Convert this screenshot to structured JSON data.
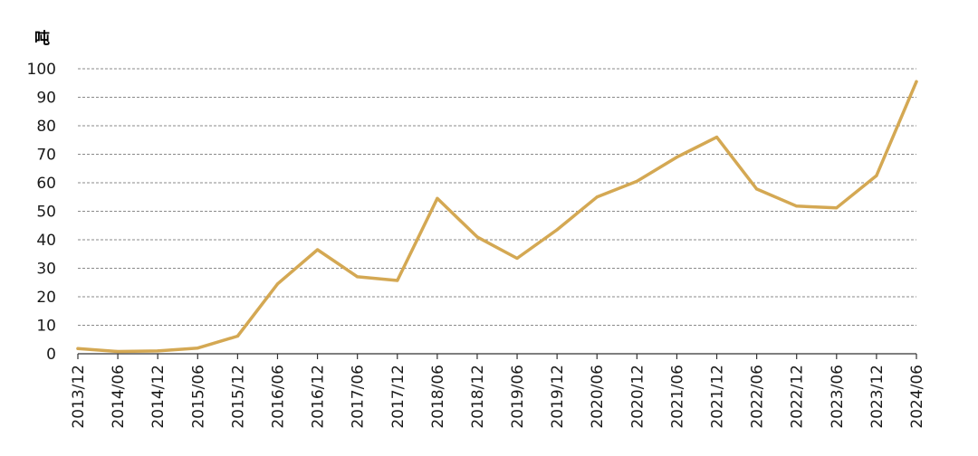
{
  "chart_data": {
    "type": "line",
    "unit_label": "吨",
    "x": [
      "2013/12",
      "2014/06",
      "2014/12",
      "2015/06",
      "2015/12",
      "2016/06",
      "2016/12",
      "2017/06",
      "2017/12",
      "2018/06",
      "2018/12",
      "2019/06",
      "2019/12",
      "2020/06",
      "2020/12",
      "2021/06",
      "2021/12",
      "2022/06",
      "2022/12",
      "2023/06",
      "2023/12",
      "2024/06"
    ],
    "series": [
      {
        "values": [
          1.8,
          0.8,
          1.0,
          2.0,
          6.2,
          24.5,
          36.5,
          27.0,
          25.7,
          54.5,
          41.0,
          33.5,
          43.5,
          55.0,
          60.5,
          69.0,
          76.0,
          57.8,
          51.8,
          51.2,
          62.5,
          95.5
        ],
        "color": "#d4a853"
      }
    ],
    "y_ticks": [
      "0",
      "10",
      "20",
      "30",
      "40",
      "50",
      "60",
      "70",
      "80",
      "90",
      "100"
    ],
    "ylim": [
      0,
      100
    ],
    "grid": true,
    "legend": "none"
  }
}
